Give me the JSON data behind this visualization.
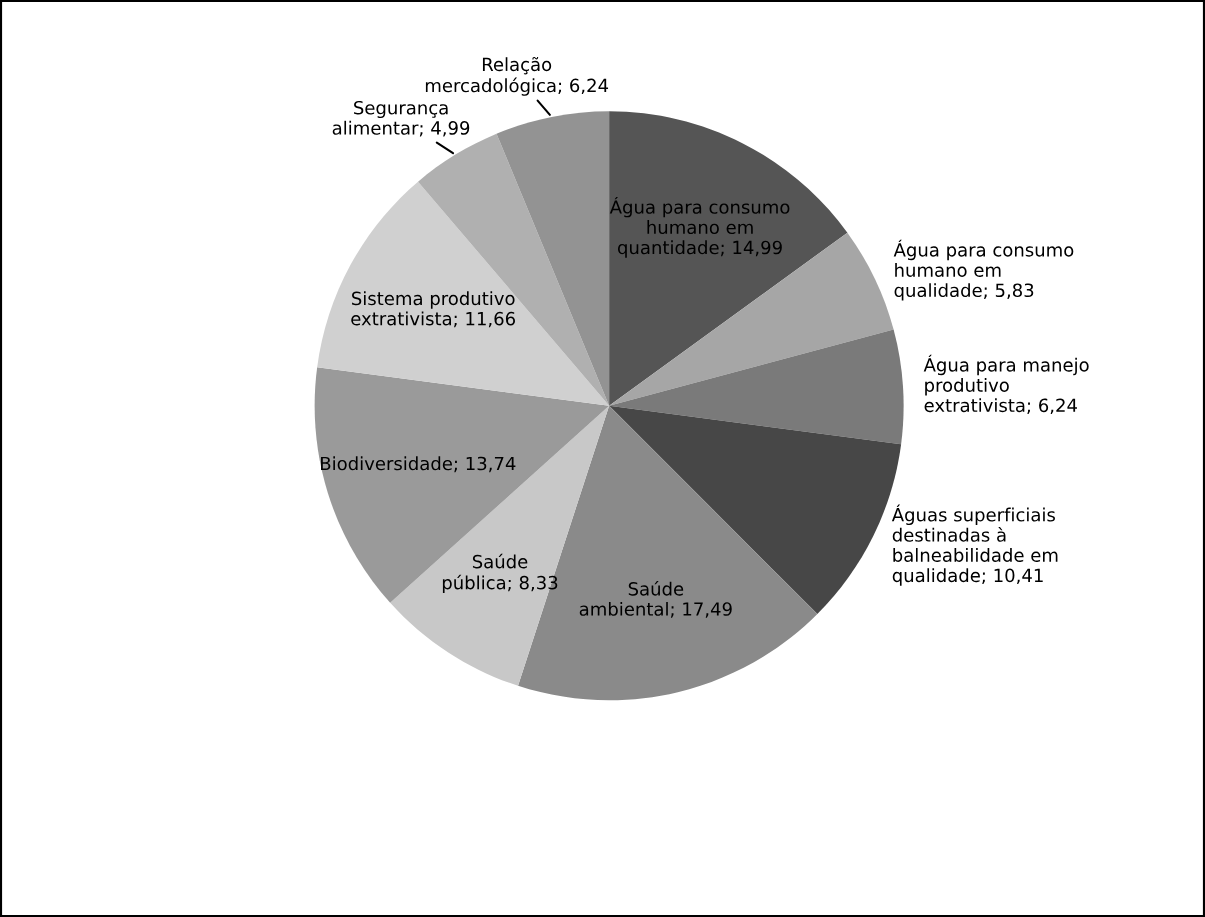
{
  "chart_data": {
    "type": "pie",
    "categories": [
      "Água para consumo humano em quantidade",
      "Água para consumo humano em qualidade",
      "Água para manejo produtivo extrativista",
      "Águas superficiais destinadas à balneabilidade em qualidade",
      "Saúde ambiental",
      "Saúde pública",
      "Biodiversidade",
      "Sistema produtivo extrativista",
      "Segurança alimentar",
      "Relação mercadológica"
    ],
    "values": [
      14.99,
      5.83,
      6.24,
      10.41,
      17.49,
      8.33,
      13.74,
      11.66,
      4.99,
      6.24
    ],
    "value_labels": [
      "14,99",
      "5,83",
      "6,24",
      "10,41",
      "17,49",
      "8,33",
      "13,74",
      "11,66",
      "4,99",
      "6,24"
    ],
    "colors": [
      "#555555",
      "#a6a6a6",
      "#7a7a7a",
      "#474747",
      "#8a8a8a",
      "#c8c8c8",
      "#9a9a9a",
      "#d0d0d0",
      "#b0b0b0",
      "#939393"
    ],
    "legend": false
  }
}
